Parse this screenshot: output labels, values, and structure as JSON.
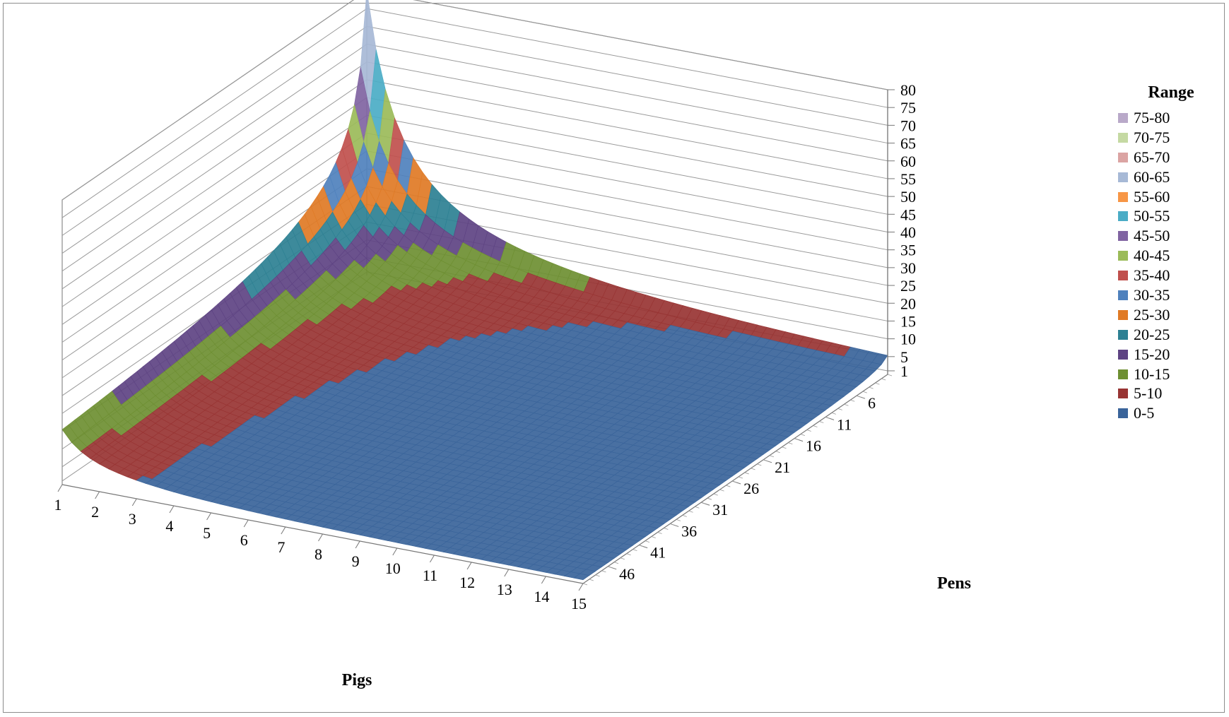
{
  "chart_data": {
    "type": "surface",
    "title": "",
    "xlabel": "Pigs",
    "ylabel": "Pens",
    "zlabel": "",
    "x_ticks": [
      "1",
      "2",
      "3",
      "4",
      "5",
      "6",
      "7",
      "8",
      "9",
      "10",
      "11",
      "12",
      "13",
      "14",
      "15"
    ],
    "y_ticks": [
      "6",
      "11",
      "16",
      "21",
      "26",
      "31",
      "36",
      "41",
      "46"
    ],
    "z_ticks": [
      "1",
      "5",
      "10",
      "15",
      "20",
      "25",
      "30",
      "35",
      "40",
      "45",
      "50",
      "55",
      "60",
      "65",
      "70",
      "75",
      "80"
    ],
    "zlim": [
      1,
      80
    ],
    "x_range": [
      1,
      15
    ],
    "y_range": [
      1,
      50
    ],
    "legend": {
      "title": "Range",
      "placement": "right",
      "entries": [
        {
          "label": "75-80",
          "color": "#b9a9c9"
        },
        {
          "label": "70-75",
          "color": "#c5d9a3"
        },
        {
          "label": "65-70",
          "color": "#dba4a3"
        },
        {
          "label": "60-65",
          "color": "#a7b9d6"
        },
        {
          "label": "55-60",
          "color": "#f79646"
        },
        {
          "label": "50-55",
          "color": "#4bacc6"
        },
        {
          "label": "45-50",
          "color": "#8064a2"
        },
        {
          "label": "40-45",
          "color": "#9bbb59"
        },
        {
          "label": "35-40",
          "color": "#c0504d"
        },
        {
          "label": "30-35",
          "color": "#4f81bd"
        },
        {
          "label": "25-30",
          "color": "#e07a25"
        },
        {
          "label": "20-25",
          "color": "#2d8093"
        },
        {
          "label": "15-20",
          "color": "#5e4383"
        },
        {
          "label": "10-15",
          "color": "#6e8f32"
        },
        {
          "label": "5-10",
          "color": "#983433"
        },
        {
          "label": "0-5",
          "color": "#3a649a"
        }
      ]
    },
    "grid": true,
    "surface_function": "z = 80 / (pigs * pens^0.5), peak 80 at pigs=1, pens=1"
  }
}
